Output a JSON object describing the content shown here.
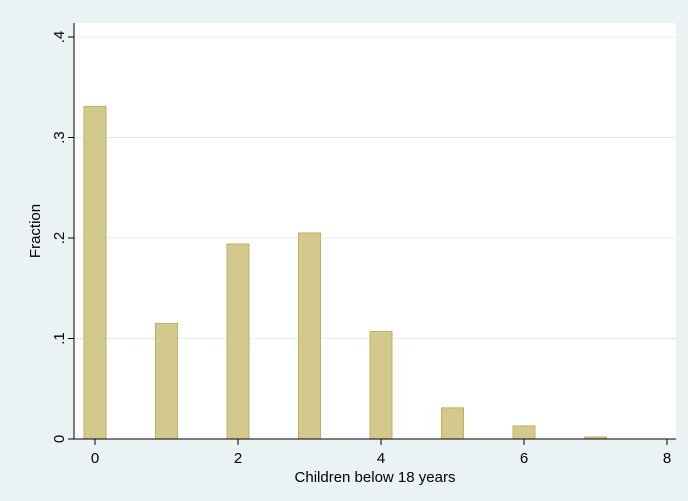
{
  "chart_data": {
    "type": "bar",
    "x": [
      0,
      1,
      2,
      3,
      4,
      5,
      6,
      7
    ],
    "values": [
      0.331,
      0.115,
      0.194,
      0.205,
      0.107,
      0.031,
      0.013,
      0.002
    ],
    "xlabel": "Children below 18 years",
    "ylabel": "Fraction",
    "xlim": [
      0,
      8
    ],
    "ylim": [
      0,
      0.4
    ],
    "xticks": [
      0,
      2,
      4,
      6,
      8
    ],
    "xtick_labels": [
      "0",
      "2",
      "4",
      "6",
      "8"
    ],
    "yticks": [
      0,
      0.1,
      0.2,
      0.3,
      0.4
    ],
    "ytick_labels": [
      "0",
      ".1",
      ".2",
      ".3",
      ".4"
    ],
    "grid": true,
    "colors": {
      "bar_fill": "#d4c98c",
      "bar_edge": "#bdb06a",
      "background": "#eaf2f3",
      "plot_background": "#ffffff",
      "grid": "#e6ecee"
    }
  }
}
